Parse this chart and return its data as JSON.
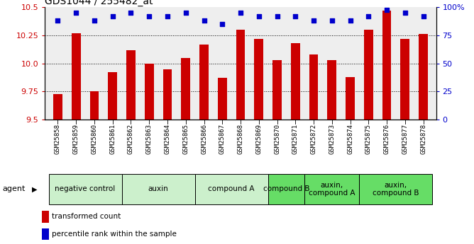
{
  "title": "GDS1044 / 255482_at",
  "samples": [
    "GSM25858",
    "GSM25859",
    "GSM25860",
    "GSM25861",
    "GSM25862",
    "GSM25863",
    "GSM25864",
    "GSM25865",
    "GSM25866",
    "GSM25867",
    "GSM25868",
    "GSM25869",
    "GSM25870",
    "GSM25871",
    "GSM25872",
    "GSM25873",
    "GSM25874",
    "GSM25875",
    "GSM25876",
    "GSM25877",
    "GSM25878"
  ],
  "bar_values": [
    9.73,
    10.27,
    9.75,
    9.92,
    10.12,
    10.0,
    9.95,
    10.05,
    10.17,
    9.87,
    10.3,
    10.22,
    10.03,
    10.18,
    10.08,
    10.03,
    9.88,
    10.3,
    10.47,
    10.22,
    10.26
  ],
  "percentile_values": [
    88,
    95,
    88,
    92,
    95,
    92,
    92,
    95,
    88,
    85,
    95,
    92,
    92,
    92,
    88,
    88,
    88,
    92,
    98,
    95,
    92
  ],
  "bar_color": "#cc0000",
  "dot_color": "#0000cc",
  "ylim_left": [
    9.5,
    10.5
  ],
  "ylim_right": [
    0,
    100
  ],
  "yticks_left": [
    9.5,
    9.75,
    10.0,
    10.25,
    10.5
  ],
  "yticks_right": [
    0,
    25,
    50,
    75,
    100
  ],
  "ytick_labels_right": [
    "0",
    "25",
    "50",
    "75",
    "100%"
  ],
  "grid_values": [
    9.75,
    10.0,
    10.25
  ],
  "agent_groups": [
    {
      "label": "negative control",
      "start": 0,
      "end": 3,
      "color": "#ccf0cc"
    },
    {
      "label": "auxin",
      "start": 4,
      "end": 7,
      "color": "#ccf0cc"
    },
    {
      "label": "compound A",
      "start": 8,
      "end": 11,
      "color": "#ccf0cc"
    },
    {
      "label": "compound B",
      "start": 12,
      "end": 13,
      "color": "#66dd66"
    },
    {
      "label": "auxin,\ncompound A",
      "start": 14,
      "end": 16,
      "color": "#66dd66"
    },
    {
      "label": "auxin,\ncompound B",
      "start": 17,
      "end": 20,
      "color": "#66dd66"
    }
  ],
  "plot_bg": "#eeeeee",
  "xtick_bg": "#dddddd",
  "bar_width": 0.5,
  "n_samples": 21
}
